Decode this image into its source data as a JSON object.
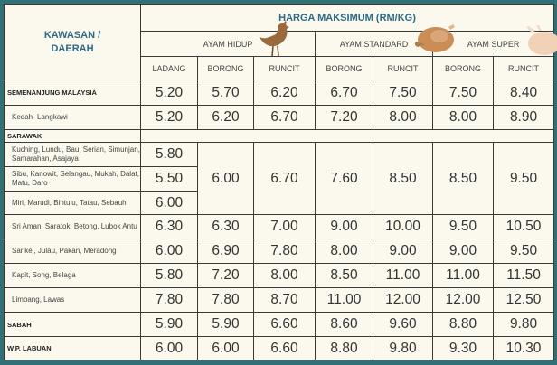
{
  "header": {
    "region_label": "KAWASAN / DAERAH",
    "price_title": "HARGA MAKSIMUM (RM/KG)",
    "groups": [
      "AYAM HIDUP",
      "AYAM STANDARD",
      "AYAM SUPER"
    ],
    "columns": [
      "LADANG",
      "BORONG",
      "RUNCIT",
      "BORONG",
      "RUNCIT",
      "BORONG",
      "RUNCIT"
    ]
  },
  "rows": [
    {
      "label": "SEMENANJUNG MALAYSIA",
      "type": "region",
      "values": [
        "5.20",
        "5.70",
        "6.20",
        "6.70",
        "7.50",
        "7.50",
        "8.40"
      ]
    },
    {
      "label": "Kedah- Langkawi",
      "type": "area",
      "values": [
        "5.20",
        "6.20",
        "6.70",
        "7.20",
        "8.00",
        "8.00",
        "8.90"
      ]
    },
    {
      "label": "SARAWAK",
      "type": "region-header",
      "values": []
    },
    {
      "label": "Kuching, Lundu, Bau, Serian, Simunjan, Samarahan, Asajaya",
      "type": "area",
      "values": [
        "5.80",
        "6.00",
        "6.70",
        "7.60",
        "8.50",
        "8.50",
        "9.50"
      ]
    },
    {
      "label": "Sibu, Kanowit, Selangau, Mukah, Dalat, Matu, Daro",
      "type": "area",
      "values": [
        "5.50"
      ]
    },
    {
      "label": "Miri, Marudi, Bintulu, Tatau, Sebauh",
      "type": "area",
      "values": [
        "6.00"
      ]
    },
    {
      "label": "Sri Aman, Saratok, Betong, Lubok Antu",
      "type": "area",
      "values": [
        "6.30",
        "6.30",
        "7.00",
        "9.00",
        "10.00",
        "9.50",
        "10.50"
      ]
    },
    {
      "label": "Sarikei, Julau, Pakan, Meradong",
      "type": "area",
      "values": [
        "6.00",
        "6.90",
        "7.80",
        "8.00",
        "9.00",
        "9.00",
        "9.50"
      ]
    },
    {
      "label": "Kapit, Song, Belaga",
      "type": "area",
      "values": [
        "5.80",
        "7.20",
        "8.00",
        "8.50",
        "11.00",
        "11.00",
        "11.50"
      ]
    },
    {
      "label": "Limbang, Lawas",
      "type": "area",
      "values": [
        "7.80",
        "7.80",
        "8.70",
        "11.00",
        "12.00",
        "12.00",
        "12.50"
      ]
    },
    {
      "label": "SABAH",
      "type": "region",
      "values": [
        "5.90",
        "5.90",
        "6.60",
        "8.60",
        "9.60",
        "8.80",
        "9.80"
      ]
    },
    {
      "label": "W.P. LABUAN",
      "type": "region",
      "values": [
        "6.00",
        "6.00",
        "6.60",
        "8.80",
        "9.80",
        "9.30",
        "10.30"
      ]
    }
  ],
  "icons": [
    "live-chicken-icon",
    "roast-chicken-icon",
    "raw-chicken-icon"
  ],
  "colors": {
    "frame": "#2f7174",
    "header_text": "#2f6a86",
    "background": "#fbf9ee"
  }
}
